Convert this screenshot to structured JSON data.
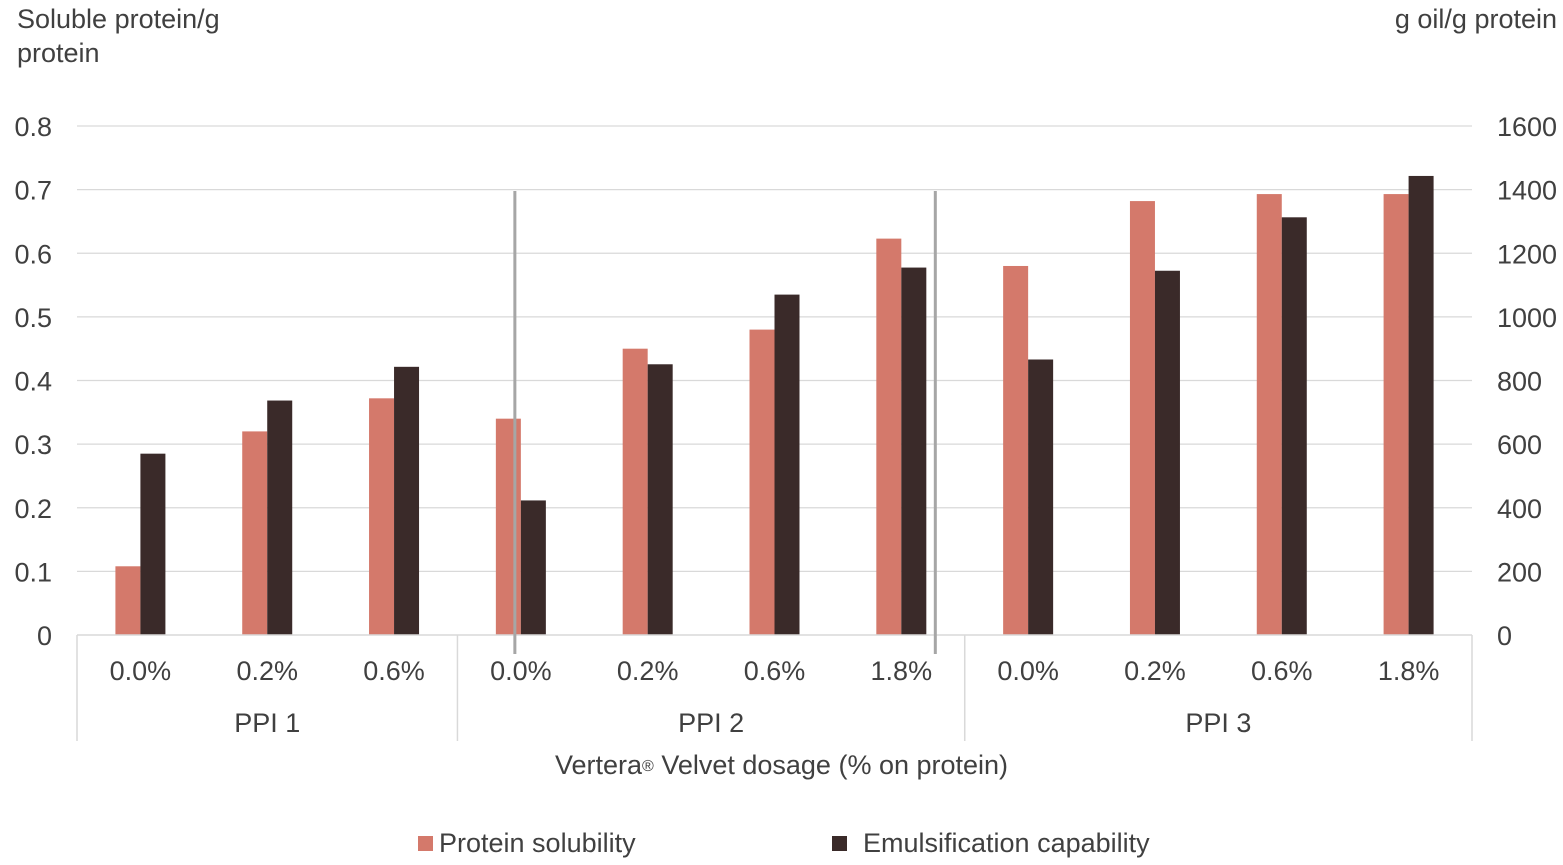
{
  "chart_data": {
    "type": "bar",
    "ylabel_left": "Soluble protein/g protein",
    "ylabel_right": "g oil/g protein",
    "xlabel_main": "Vertera",
    "xlabel_reg": "®",
    "xlabel_rest": " Velvet  dosage (% on protein)",
    "y_left_lim": [
      0,
      0.8
    ],
    "y_left_ticks": [
      "0",
      "0.1",
      "0.2",
      "0.3",
      "0.4",
      "0.5",
      "0.6",
      "0.7",
      "0.8"
    ],
    "y_right_lim": [
      0,
      1600
    ],
    "y_right_ticks": [
      "0",
      "200",
      "400",
      "600",
      "800",
      "1000",
      "1200",
      "1400",
      "1600"
    ],
    "grid": true,
    "legend_position": "bottom",
    "groups": [
      {
        "name": "PPI 1",
        "categories": [
          "0.0%",
          "0.2%",
          "0.6%"
        ]
      },
      {
        "name": "PPI 2",
        "categories": [
          "0.0%",
          "0.2%",
          "0.6%",
          "1.8%"
        ]
      },
      {
        "name": "PPI 3",
        "categories": [
          "0.0%",
          "0.2%",
          "0.6%",
          "1.8%"
        ]
      }
    ],
    "categories": [
      "0.0%",
      "0.2%",
      "0.6%",
      "0.0%",
      "0.2%",
      "0.6%",
      "1.8%",
      "0.0%",
      "0.2%",
      "0.6%",
      "1.8%"
    ],
    "series": [
      {
        "name": "Protein solubility",
        "axis": "left",
        "color": "#d4796b",
        "values": [
          0.108,
          0.32,
          0.372,
          0.34,
          0.45,
          0.48,
          0.623,
          0.58,
          0.682,
          0.693,
          0.693
        ]
      },
      {
        "name": "Emulsification capability",
        "axis": "right",
        "color": "#3a2a29",
        "values": [
          570,
          737,
          843,
          423,
          851,
          1070,
          1155,
          866,
          1145,
          1313,
          1443
        ]
      }
    ],
    "gridline_color": "#d9d9d9"
  }
}
